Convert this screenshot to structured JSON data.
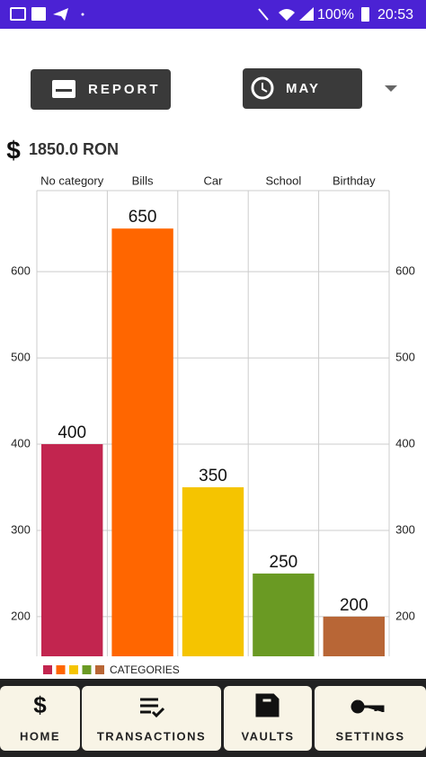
{
  "status_bar": {
    "battery": "100%",
    "time": "20:53"
  },
  "header": {
    "report_button": "REPORT",
    "month_button": "MAY"
  },
  "total": {
    "icon": "$",
    "amount": "1850.0 RON"
  },
  "chart_data": {
    "type": "bar",
    "categories": [
      "No category",
      "Bills",
      "Car",
      "School",
      "Birthday"
    ],
    "values": [
      400,
      650,
      350,
      250,
      200
    ],
    "colors": [
      "#c2254f",
      "#ff6600",
      "#f5c400",
      "#6a9a23",
      "#b86636"
    ],
    "ylim": [
      154,
      694
    ],
    "yticks": [
      200,
      300,
      400,
      500,
      600
    ],
    "grid": true,
    "legend": "CATEGORIES"
  },
  "nav": [
    {
      "icon": "$",
      "label": "HOME"
    },
    {
      "label": "TRANSACTIONS"
    },
    {
      "label": "VAULTS"
    },
    {
      "label": "SETTINGS"
    }
  ]
}
